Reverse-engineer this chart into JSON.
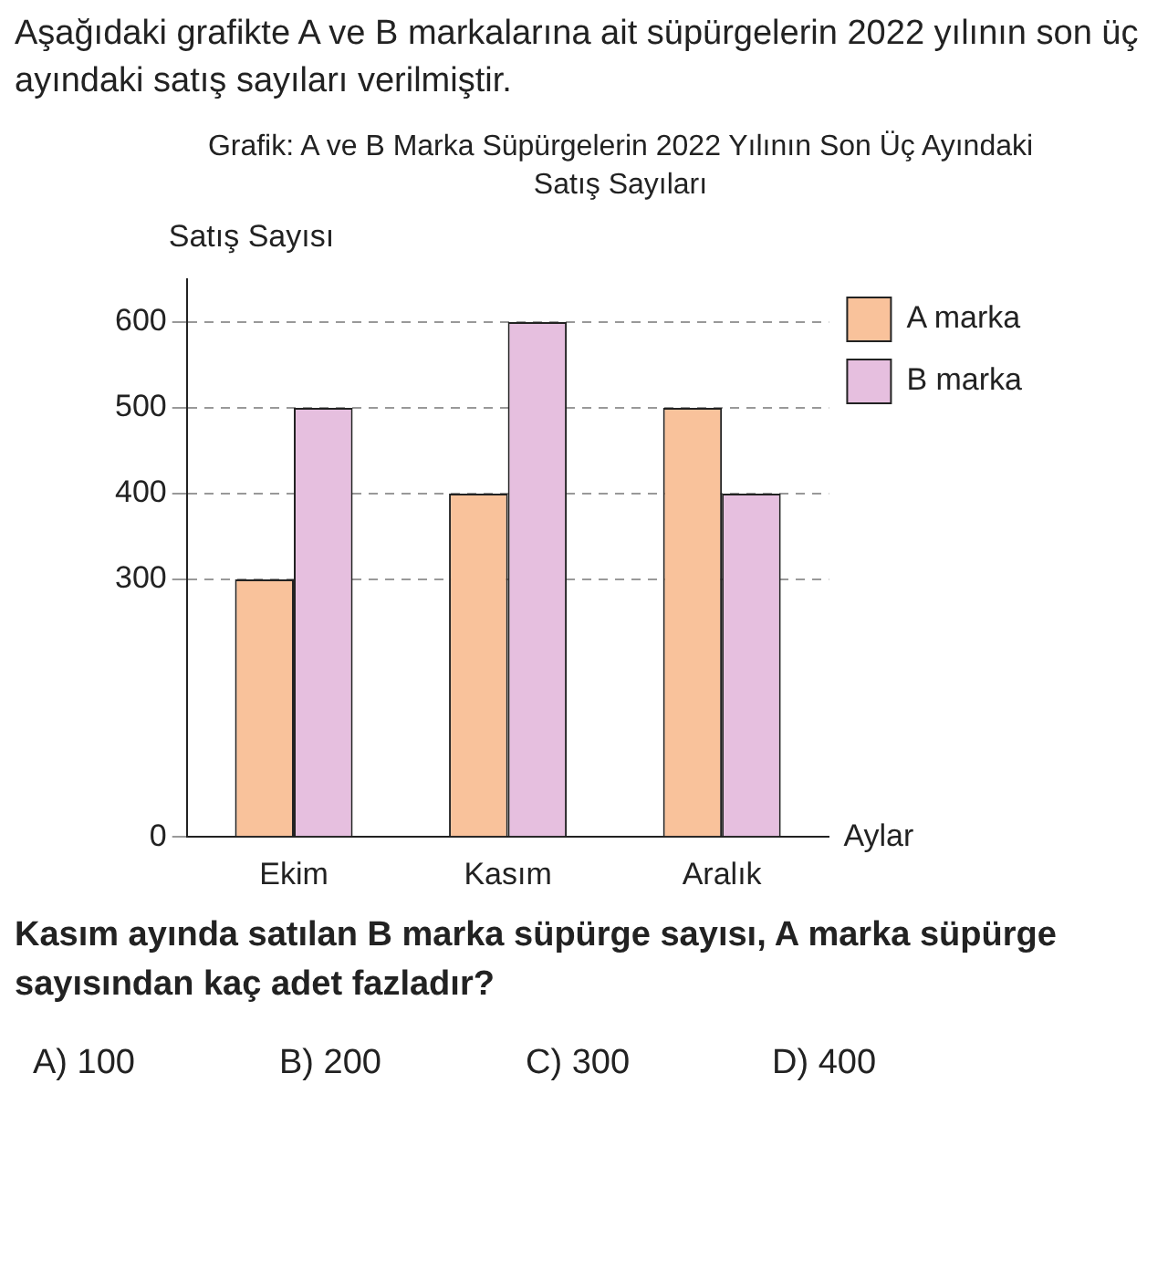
{
  "chart_data": {
    "type": "bar",
    "title": "Grafik: A ve B Marka Süpürgelerin 2022 Yılının Son Üç Ayındaki Satış Sayıları",
    "xlabel": "Aylar",
    "ylabel": "Satış Sayısı",
    "categories": [
      "Ekim",
      "Kasım",
      "Aralık"
    ],
    "series": [
      {
        "name": "A marka",
        "color": "#f9c29b",
        "values": [
          300,
          400,
          500
        ]
      },
      {
        "name": "B marka",
        "color": "#e6bfdf",
        "values": [
          500,
          600,
          400
        ]
      }
    ],
    "ylim": [
      0,
      650
    ],
    "yticks": [
      0,
      300,
      400,
      500,
      600
    ],
    "grid": "y",
    "legend": "top right",
    "annotations": [
      "Aşağıdaki grafikte A ve B markalarına ait süpürgelerin 2022 yılının son üç ayındaki satış sayıları verilmiştir.",
      "Kasım ayında satılan B marka süpürge sayısı, A marka süpürge sayısından kaç adet fazladır?",
      "A) 100",
      "B) 200",
      "C) 300",
      "D) 400"
    ]
  }
}
